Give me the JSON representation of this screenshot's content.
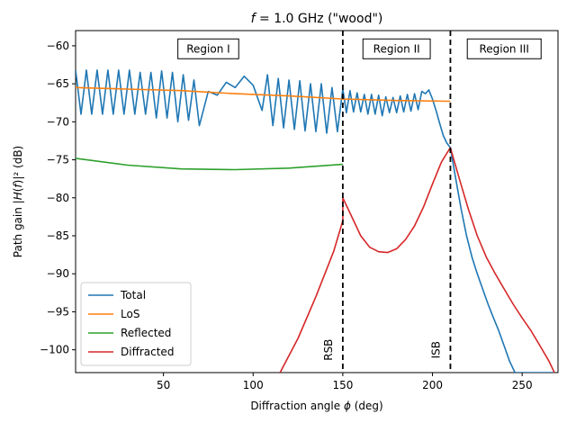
{
  "chart_data": {
    "type": "line",
    "title": "f = 1.0 GHz (\"wood\")",
    "title_parts": {
      "var": "f",
      "rest": " = 1.0 GHz (\"wood\")"
    },
    "xlabel": "Diffraction angle ϕ (deg)",
    "xlabel_parts": {
      "pre": "Diffraction angle ",
      "var": "ϕ",
      "post": " (deg)"
    },
    "ylabel": "Path gain |H(f)|² (dB)",
    "ylabel_parts": {
      "pre": "Path gain |",
      "var": "H",
      "mid": "(",
      "var2": "f",
      "post": ")|² (dB)"
    },
    "xlim": [
      1,
      270
    ],
    "ylim": [
      -103,
      -58
    ],
    "xticks": [
      50,
      100,
      150,
      200,
      250
    ],
    "yticks": [
      -60,
      -65,
      -70,
      -75,
      -80,
      -85,
      -90,
      -95,
      -100
    ],
    "colors": {
      "Total": "#1f77b4",
      "LoS": "#ff7f0e",
      "Reflected": "#2ca02c",
      "Diffracted": "#d62728"
    },
    "series": [
      {
        "name": "LoS",
        "x": [
          1,
          30,
          60,
          90,
          120,
          150,
          180,
          210
        ],
        "y": [
          -65.5,
          -65.7,
          -65.9,
          -66.3,
          -66.6,
          -67.0,
          -67.2,
          -67.3
        ]
      },
      {
        "name": "Reflected",
        "x": [
          1,
          30,
          60,
          90,
          120,
          150
        ],
        "y": [
          -74.8,
          -75.7,
          -76.2,
          -76.3,
          -76.1,
          -75.6
        ]
      },
      {
        "name": "Diffracted",
        "x": [
          115,
          125,
          135,
          145,
          150,
          150,
          155,
          160,
          165,
          170,
          175,
          180,
          185,
          190,
          195,
          200,
          205,
          210,
          215,
          220,
          225,
          230,
          235,
          240,
          245,
          250,
          255,
          260,
          265,
          268
        ],
        "y": [
          -103,
          -98.5,
          -93,
          -87,
          -83,
          -80,
          -82.5,
          -85,
          -86.5,
          -87.1,
          -87.2,
          -86.7,
          -85.5,
          -83.7,
          -81.2,
          -78.2,
          -75.3,
          -73.4,
          -77.5,
          -81.5,
          -85,
          -87.8,
          -90,
          -92,
          -94,
          -95.8,
          -97.5,
          -99.5,
          -101.5,
          -103
        ]
      },
      {
        "name": "Total",
        "x": [
          1,
          4,
          7,
          10,
          13,
          16,
          19,
          22,
          25,
          28,
          31,
          34,
          37,
          40,
          43,
          46,
          49,
          52,
          55,
          58,
          61,
          64,
          67,
          70,
          75,
          80,
          85,
          90,
          95,
          100,
          105,
          108,
          111,
          114,
          117,
          120,
          123,
          126,
          129,
          132,
          135,
          138,
          141,
          144,
          147,
          150,
          152,
          154,
          156,
          158,
          160,
          162,
          164,
          166,
          168,
          170,
          172,
          174,
          176,
          178,
          180,
          182,
          184,
          186,
          188,
          190,
          192,
          194,
          196,
          198,
          200,
          202,
          204,
          206,
          208,
          210,
          213,
          216,
          219,
          222,
          225,
          228,
          231,
          234,
          237,
          240,
          243,
          246,
          250,
          254,
          258,
          262,
          266,
          268
        ],
        "y": [
          -63.2,
          -69.0,
          -63.2,
          -69.0,
          -63.2,
          -69.0,
          -63.2,
          -69.0,
          -63.2,
          -69.0,
          -63.2,
          -69.0,
          -63.5,
          -69.0,
          -63.5,
          -69.5,
          -63.3,
          -69.5,
          -63.5,
          -70,
          -63.8,
          -69.8,
          -64.5,
          -70.5,
          -66,
          -66.5,
          -64.8,
          -65.5,
          -64,
          -65.2,
          -68.5,
          -63.8,
          -70.5,
          -64.3,
          -70.8,
          -64.5,
          -71,
          -64.6,
          -71.2,
          -65,
          -71.3,
          -65,
          -71.5,
          -65.5,
          -71.3,
          -65.7,
          -68.8,
          -65.9,
          -68.7,
          -66.2,
          -68.7,
          -66.4,
          -69,
          -66.4,
          -69,
          -66.5,
          -69.2,
          -66.7,
          -68.8,
          -66.8,
          -68.8,
          -66.6,
          -68.7,
          -66.4,
          -68.6,
          -66.3,
          -68.4,
          -66,
          -66.3,
          -65.8,
          -67,
          -68.5,
          -70.2,
          -71.8,
          -72.8,
          -73.4,
          -77.5,
          -81.5,
          -85,
          -87.8,
          -90,
          -92,
          -94,
          -95.8,
          -97.5,
          -99.5,
          -101.5,
          -103,
          -103,
          -103,
          -103,
          -103,
          -103,
          -103
        ]
      }
    ],
    "legend": {
      "position": "lower-left",
      "entries": [
        "Total",
        "LoS",
        "Reflected",
        "Diffracted"
      ]
    },
    "vlines": [
      150,
      210
    ],
    "regions": [
      {
        "label": "Region I",
        "x": 75,
        "y": -60.4
      },
      {
        "label": "Region II",
        "x": 180,
        "y": -60.4
      },
      {
        "label": "Region III",
        "x": 240,
        "y": -60.4
      }
    ],
    "annotations": [
      {
        "text": "RSB",
        "x": 144,
        "y": -100
      },
      {
        "text": "ISB",
        "x": 204,
        "y": -100
      }
    ]
  }
}
